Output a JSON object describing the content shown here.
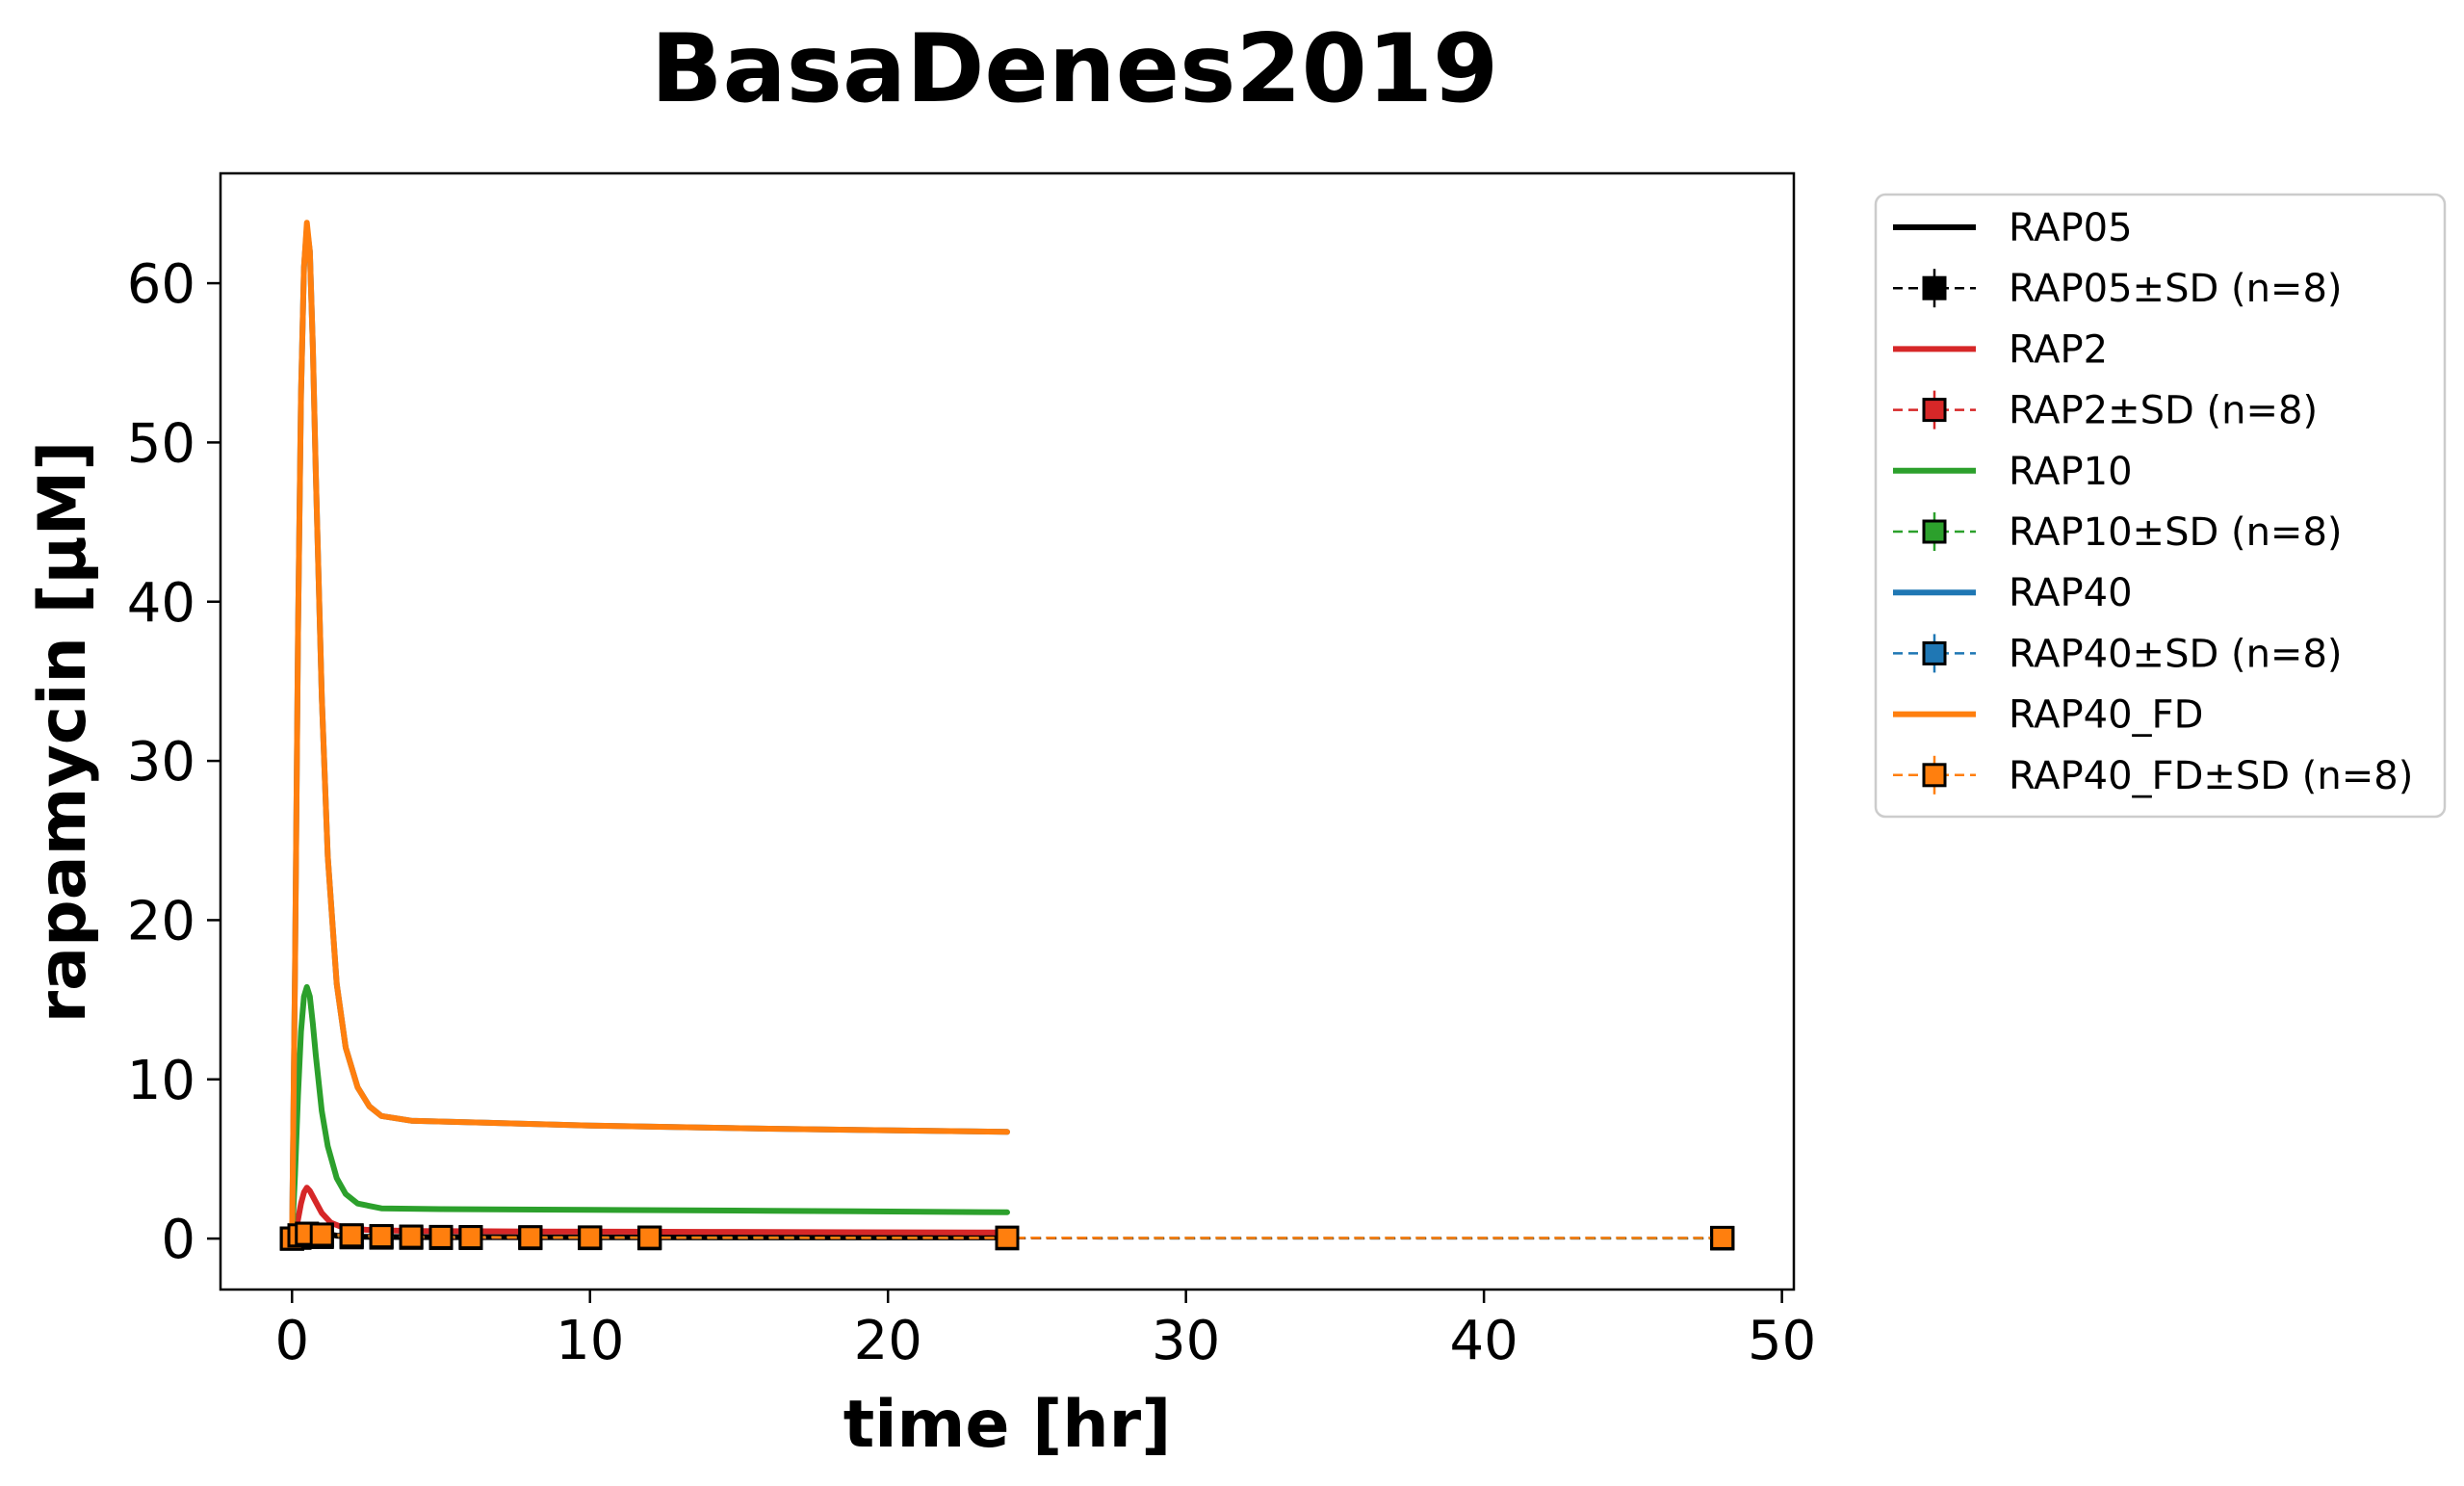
{
  "chart_data": {
    "type": "line",
    "title": "BasaDenes2019",
    "xlabel": "time [hr]",
    "ylabel": "rapamycin [μM]",
    "xlim": [
      -2.4,
      50.4
    ],
    "ylim": [
      -3.2,
      66.9
    ],
    "xticks": [
      0,
      10,
      20,
      30,
      40,
      50
    ],
    "yticks": [
      0,
      10,
      20,
      30,
      40,
      50,
      60
    ],
    "grid": false,
    "legend_position": "outside-right",
    "series": [
      {
        "name": "RAP05",
        "kind": "simulation",
        "color": "#000000",
        "x": [
          0,
          0.1,
          0.2,
          0.3,
          0.5,
          0.7,
          1,
          1.5,
          2,
          3,
          5,
          10,
          24
        ],
        "y": [
          0,
          0.08,
          0.2,
          0.35,
          0.75,
          0.6,
          0.35,
          0.18,
          0.12,
          0.1,
          0.09,
          0.08,
          0.07
        ]
      },
      {
        "name": "RAP05±SD (n=8)",
        "kind": "data",
        "color": "#000000",
        "x": [
          0,
          0.25,
          0.5,
          1,
          2,
          3,
          4,
          5,
          6,
          8,
          10,
          12,
          24,
          48
        ],
        "y": [
          0,
          0.05,
          0.1,
          0.1,
          0.08,
          0.06,
          0.05,
          0.04,
          0.04,
          0.03,
          0.03,
          0.02,
          0.02,
          0.01
        ]
      },
      {
        "name": "RAP2",
        "kind": "simulation",
        "color": "#d62728",
        "x": [
          0,
          0.1,
          0.2,
          0.3,
          0.4,
          0.5,
          0.6,
          0.8,
          1,
          1.3,
          1.7,
          2.5,
          4,
          8,
          14,
          24
        ],
        "y": [
          0,
          0.4,
          1.2,
          2.2,
          2.9,
          3.2,
          3.0,
          2.3,
          1.6,
          1.0,
          0.7,
          0.55,
          0.48,
          0.45,
          0.42,
          0.38
        ]
      },
      {
        "name": "RAP2±SD (n=8)",
        "kind": "data",
        "color": "#d62728",
        "x": [
          0,
          0.25,
          0.5,
          1,
          2,
          3,
          4,
          5,
          6,
          8,
          10,
          12,
          24,
          48
        ],
        "y": [
          0,
          0.1,
          0.2,
          0.15,
          0.1,
          0.08,
          0.07,
          0.06,
          0.05,
          0.05,
          0.04,
          0.04,
          0.03,
          0.02
        ]
      },
      {
        "name": "RAP10",
        "kind": "simulation",
        "color": "#2ca02c",
        "x": [
          0,
          0.1,
          0.2,
          0.3,
          0.4,
          0.5,
          0.6,
          0.7,
          0.8,
          1,
          1.2,
          1.5,
          1.8,
          2.2,
          3,
          5,
          10,
          16,
          24
        ],
        "y": [
          0,
          4.0,
          9.0,
          13.0,
          15.2,
          15.8,
          15.2,
          13.5,
          11.5,
          8.0,
          5.8,
          3.8,
          2.8,
          2.2,
          1.9,
          1.85,
          1.8,
          1.75,
          1.65
        ]
      },
      {
        "name": "RAP10±SD (n=8)",
        "kind": "data",
        "color": "#2ca02c",
        "x": [
          0,
          0.25,
          0.5,
          1,
          2,
          3,
          4,
          5,
          6,
          8,
          10,
          12,
          24,
          48
        ],
        "y": [
          0,
          0.15,
          0.25,
          0.2,
          0.15,
          0.12,
          0.1,
          0.09,
          0.08,
          0.07,
          0.06,
          0.05,
          0.04,
          0.03
        ]
      },
      {
        "name": "RAP40",
        "kind": "simulation",
        "color": "#1f77b4",
        "x": [
          0,
          0.1,
          0.2,
          0.3,
          0.4,
          0.5,
          0.6,
          0.7,
          0.8,
          1,
          1.2,
          1.5,
          1.8,
          2.2,
          2.6,
          3,
          4,
          6,
          10,
          16,
          24
        ],
        "y": [
          0,
          17,
          38,
          53,
          61,
          63.5,
          62,
          56,
          48,
          34,
          24,
          16,
          12,
          9.5,
          8.3,
          7.7,
          7.4,
          7.3,
          7.1,
          6.9,
          6.7
        ]
      },
      {
        "name": "RAP40±SD (n=8)",
        "kind": "data",
        "color": "#1f77b4",
        "x": [
          0,
          0.25,
          0.5,
          1,
          2,
          3,
          4,
          5,
          6,
          8,
          10,
          12,
          24,
          48
        ],
        "y": [
          0,
          0.2,
          0.3,
          0.25,
          0.2,
          0.15,
          0.12,
          0.1,
          0.09,
          0.08,
          0.07,
          0.06,
          0.05,
          0.04
        ]
      },
      {
        "name": "RAP40_FD",
        "kind": "simulation",
        "color": "#ff7f0e",
        "x": [
          0,
          0.1,
          0.2,
          0.3,
          0.4,
          0.5,
          0.6,
          0.7,
          0.8,
          1,
          1.2,
          1.5,
          1.8,
          2.2,
          2.6,
          3,
          4,
          6,
          10,
          16,
          24
        ],
        "y": [
          0,
          17,
          38,
          53,
          61,
          63.8,
          62,
          56,
          48,
          34,
          24,
          16,
          12,
          9.5,
          8.3,
          7.7,
          7.4,
          7.3,
          7.1,
          6.9,
          6.7
        ]
      },
      {
        "name": "RAP40_FD±SD (n=8)",
        "kind": "data",
        "color": "#ff7f0e",
        "x": [
          0,
          0.25,
          0.5,
          1,
          2,
          3,
          4,
          5,
          6,
          8,
          10,
          12,
          24,
          48
        ],
        "y": [
          0,
          0.2,
          0.3,
          0.25,
          0.2,
          0.15,
          0.12,
          0.1,
          0.09,
          0.08,
          0.07,
          0.06,
          0.05,
          0.04
        ]
      }
    ]
  }
}
